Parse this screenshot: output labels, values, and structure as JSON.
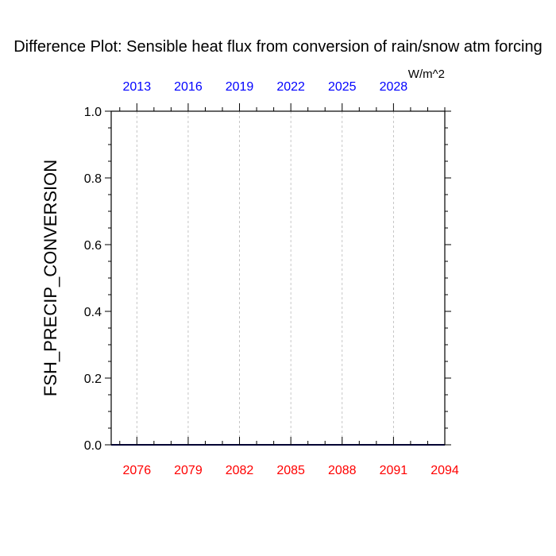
{
  "chart_data": {
    "type": "line",
    "title": "Difference Plot: Sensible heat flux from conversion of rain/snow atm forcing",
    "ylabel": "FSH_PRECIP_CONVERSION",
    "units": "W/m^2",
    "ylim": [
      0.0,
      1.0
    ],
    "yticks": [
      "0.0",
      "0.2",
      "0.4",
      "0.6",
      "0.8",
      "1.0"
    ],
    "xlim": [
      2074.5,
      2094
    ],
    "xticks_bottom": [
      "2076",
      "2079",
      "2082",
      "2085",
      "2088",
      "2091",
      "2094"
    ],
    "xticks_top": [
      "2013",
      "2016",
      "2019",
      "2022",
      "2025",
      "2028"
    ],
    "bottom_axis_color": "#ff0000",
    "top_axis_color": "#0000ff",
    "grid": "vertical dashed",
    "series": [
      {
        "x": [
          2074.5,
          2094
        ],
        "y": [
          0.0,
          0.0
        ],
        "color": "#000080"
      }
    ]
  }
}
